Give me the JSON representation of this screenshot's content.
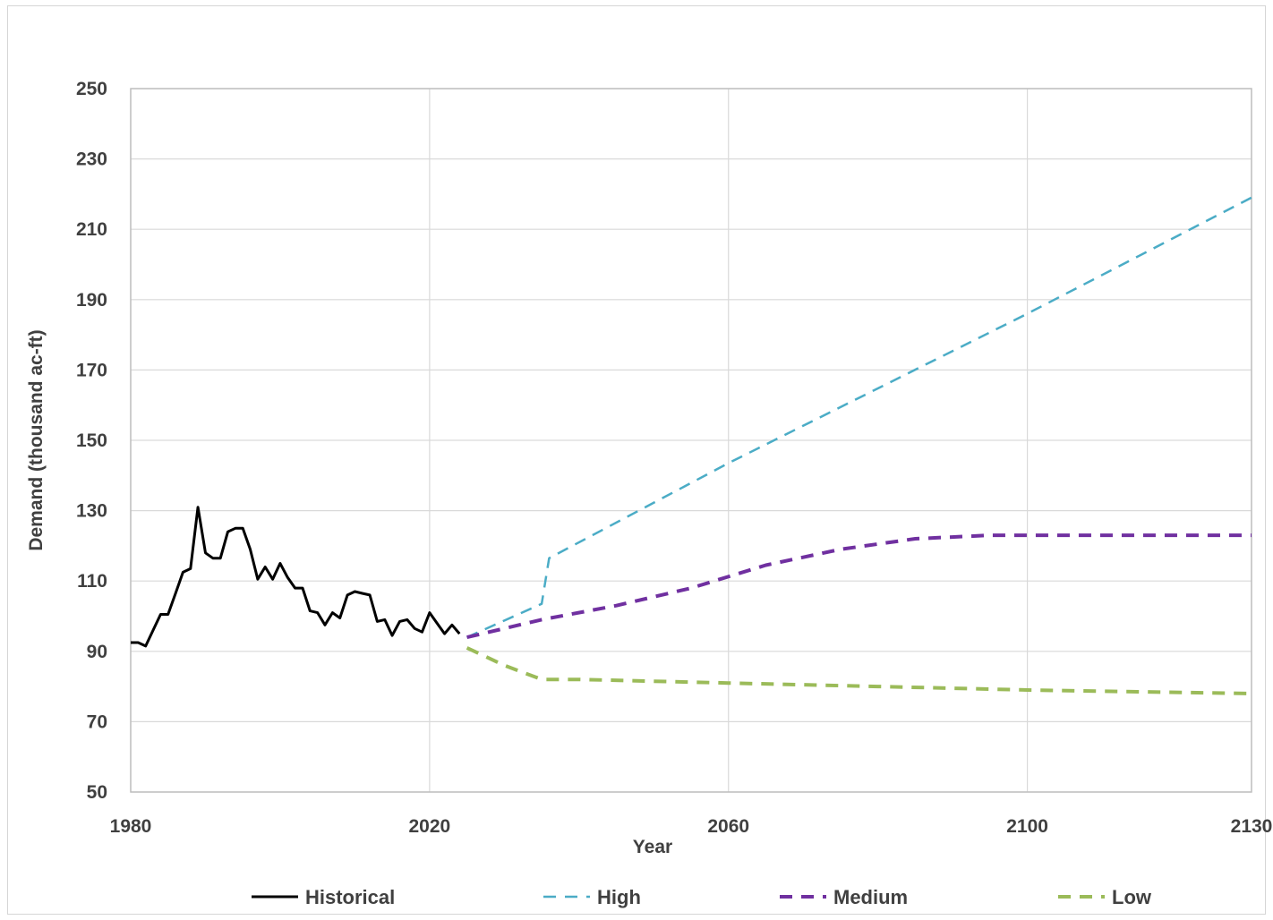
{
  "chart_data": {
    "type": "line",
    "title": "",
    "xlabel": "Year",
    "ylabel": "Demand (thousand ac-ft)",
    "xlim": [
      1980,
      2130
    ],
    "ylim": [
      50,
      250
    ],
    "x_ticks": [
      1980,
      2020,
      2060,
      2100,
      2130
    ],
    "y_ticks": [
      50,
      70,
      90,
      110,
      130,
      150,
      170,
      190,
      210,
      230,
      250
    ],
    "grid": true,
    "legend_position": "bottom",
    "series": [
      {
        "name": "Historical",
        "color": "#000000",
        "style": "solid",
        "x": [
          1980,
          1981,
          1982,
          1983,
          1984,
          1985,
          1986,
          1987,
          1988,
          1989,
          1990,
          1991,
          1992,
          1993,
          1994,
          1995,
          1996,
          1997,
          1998,
          1999,
          2000,
          2001,
          2002,
          2003,
          2004,
          2005,
          2006,
          2007,
          2008,
          2009,
          2010,
          2011,
          2012,
          2013,
          2014,
          2015,
          2016,
          2017,
          2018,
          2019,
          2020,
          2021,
          2022,
          2023,
          2024
        ],
        "y": [
          92.5,
          92.5,
          91.5,
          96,
          100.5,
          100.5,
          106.5,
          112.5,
          113.5,
          131,
          118,
          116.5,
          116.5,
          124,
          125,
          125,
          119,
          110.5,
          114,
          110.5,
          115,
          111,
          108,
          108,
          101.5,
          101,
          97.5,
          101,
          99.5,
          106,
          107,
          106.5,
          106,
          98.5,
          99,
          94.5,
          98.5,
          99,
          96.5,
          95.5,
          101,
          98,
          95,
          97.5,
          95
        ]
      },
      {
        "name": "High",
        "color": "#4bacc6",
        "style": "dashed",
        "x": [
          2025,
          2035,
          2036,
          2060,
          2100,
          2130
        ],
        "y": [
          94,
          103.5,
          116.5,
          143.5,
          186,
          219
        ]
      },
      {
        "name": "Medium",
        "color": "#7030a0",
        "style": "dashed",
        "x": [
          2025,
          2035,
          2045,
          2055,
          2065,
          2075,
          2085,
          2095,
          2105,
          2115,
          2125,
          2130
        ],
        "y": [
          94,
          99,
          103,
          108,
          114.5,
          119,
          122,
          123,
          123,
          123,
          123,
          123
        ]
      },
      {
        "name": "Low",
        "color": "#9bbb59",
        "style": "dashed",
        "x": [
          2025,
          2030,
          2035,
          2040,
          2060,
          2080,
          2100,
          2130
        ],
        "y": [
          91,
          86,
          82,
          82,
          81,
          80,
          79,
          78
        ]
      }
    ]
  }
}
